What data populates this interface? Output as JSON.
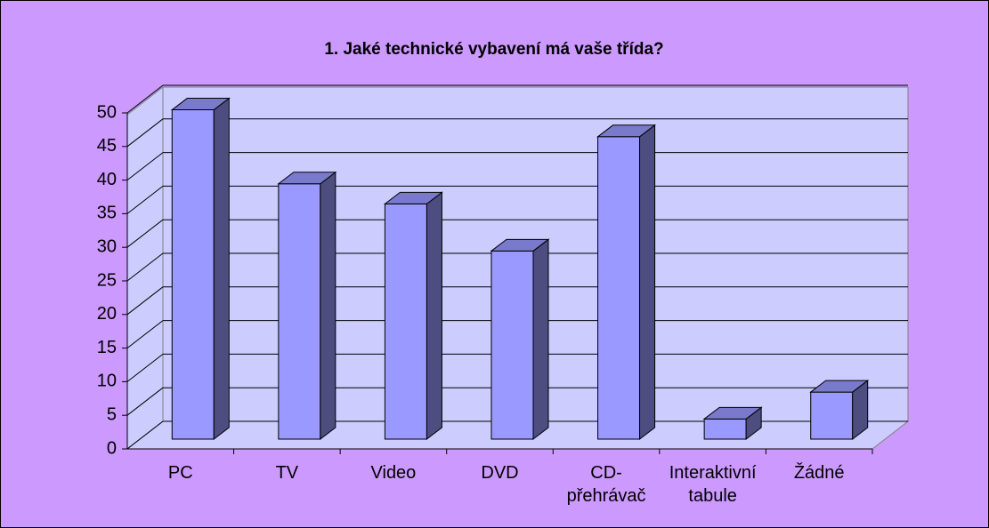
{
  "chart_data": {
    "type": "bar3d",
    "title": "1. Jaké technické vybavení má vaše třída?",
    "categories": [
      "PC",
      "TV",
      "Video",
      "DVD",
      "CD-přehrávač",
      "Interaktivní tabule",
      "Žádné"
    ],
    "values": [
      49,
      38,
      35,
      28,
      45,
      3,
      7
    ],
    "color": "#9999ff",
    "ylim": [
      0,
      50
    ],
    "yticks": [
      0,
      5,
      10,
      15,
      20,
      25,
      30,
      35,
      40,
      45,
      50
    ],
    "grid": true
  }
}
